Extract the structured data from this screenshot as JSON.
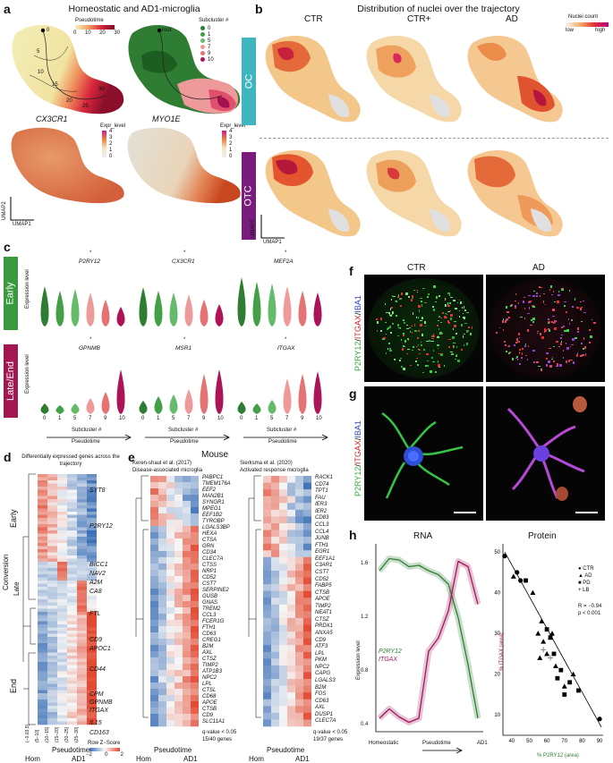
{
  "panel_a": {
    "letter": "a",
    "title": "Homeostatic and AD1-microglia",
    "pseudotime_legend": {
      "title": "Pseudotime",
      "ticks": [
        "0",
        "10",
        "20",
        "30"
      ]
    },
    "subcluster_legend": {
      "title": "Subcluster #",
      "items": [
        "0",
        "1",
        "5",
        "7",
        "9",
        "10"
      ],
      "colors": [
        "#2e7d32",
        "#43a047",
        "#66bb6a",
        "#ef9a9a",
        "#e57373",
        "#ad1457"
      ]
    },
    "trajectory_labels": [
      "0",
      "5",
      "10",
      "15",
      "20",
      "25",
      "30"
    ],
    "root_label": "root",
    "gene1": "CX3CR1",
    "gene2": "MYO1E",
    "expr_legend": {
      "title": "Expr_level",
      "ticks": [
        "4",
        "3",
        "2",
        "1",
        "0"
      ]
    },
    "umap1": "UMAP1",
    "umap2": "UMAP2"
  },
  "panel_b": {
    "letter": "b",
    "title": "Distribution of nuclei over the trajectory",
    "columns": [
      "CTR",
      "CTR+",
      "AD"
    ],
    "rows": [
      "OC",
      "OTC"
    ],
    "legend": {
      "title": "Nuclei count",
      "low": "low",
      "high": "high"
    },
    "umap1": "UMAP1",
    "umap2": "UMAP2",
    "colors": {
      "oc": "#3fb6bf",
      "otc": "#7a1c7e"
    }
  },
  "panel_c": {
    "letter": "c",
    "rows": [
      "Early",
      "Late/End"
    ],
    "row_colors": [
      "#3a9a3e",
      "#a11850"
    ],
    "ylabel": "Expression level",
    "genes_top": [
      "P2RY12",
      "CX3CR1",
      "MEF2A"
    ],
    "genes_bottom": [
      "GPNMB",
      "MSR1",
      "ITGAX"
    ],
    "star": "*",
    "subclusters": [
      "0",
      "1",
      "5",
      "7",
      "9",
      "10"
    ],
    "subcluster_label": "Subcluster #",
    "pseudotime_label": "Pseudotime"
  },
  "panel_d": {
    "letter": "d",
    "title": "Differentially expressed genes across the trajectory",
    "sections": [
      "Early",
      "Conversion",
      "Late",
      "End"
    ],
    "genes": [
      "SYT8",
      "P2RY12",
      "BICC1",
      "NAV2",
      "A2M",
      "CA8",
      "FTL",
      "CD9",
      "APOC1",
      "CD44",
      "CPM",
      "GPNMB",
      "ITGAX",
      "IL15",
      "CD163"
    ],
    "bins": [
      "(−0.03,5]",
      "(5−10]",
      "(10−15]",
      "(15−20]",
      "(20−25]",
      "(25−30]"
    ],
    "legend": {
      "title": "Row Z−Score",
      "ticks": [
        "−2",
        "0",
        "2"
      ]
    },
    "xlabel": "Pseudotime",
    "hom": "Hom",
    "ad1": "AD1"
  },
  "panel_e": {
    "letter": "e",
    "species": "Mouse",
    "left": {
      "study": "Keren-shaul et al. (2017)",
      "subtitle": "Disease-associated microglia",
      "genes": [
        "PABPC1",
        "TMEM176A",
        "EEF2",
        "MAN2B1",
        "SYNGR1",
        "MPEG1",
        "EEF1B2",
        "TYROBP",
        "LGALS3BP",
        "HEXA",
        "CTSA",
        "GRN",
        "CD34",
        "CLEC7A",
        "CTSS",
        "NRP1",
        "CD52",
        "CST7",
        "SERPINE2",
        "GUSB",
        "GNAS",
        "TREM2",
        "CCL3",
        "FCER1G",
        "FTH1",
        "CD63",
        "CREG1",
        "B2M",
        "AXL",
        "CTSZ",
        "TIMP2",
        "ATP1B3",
        "NPC2",
        "LPL",
        "CTSL",
        "CD68",
        "APOE",
        "CTSB",
        "CD9",
        "SLC11A1"
      ],
      "footnote1": "q-value < 0.05",
      "footnote2": "15/40 genes"
    },
    "right": {
      "study": "Sierksma et al. (2020)",
      "subtitle": "Activated response microglia",
      "genes": [
        "RACK1",
        "CD74",
        "TPT1",
        "FAU",
        "IER3",
        "IER2",
        "CD83",
        "CCL3",
        "CCL4",
        "JUNB",
        "FTH1",
        "EGR1",
        "EEF1A1",
        "C3AR1",
        "CST7",
        "CD52",
        "FABP5",
        "CTSB",
        "APOE",
        "TIMP2",
        "NEAT1",
        "CTSZ",
        "PRDX1",
        "ANXA5",
        "CD9",
        "ATF3",
        "LPL",
        "PKM",
        "NPC2",
        "CAPG",
        "LGALS3",
        "B2M",
        "FOS",
        "CD63",
        "AXL",
        "DUSP1",
        "CLEC7A"
      ],
      "footnote1": "q-value < 0.05",
      "footnote2": "19/37 genes"
    },
    "bins": [
      "(−0.03,5]",
      "(5−10]",
      "(10−15]",
      "(15−20]",
      "(20−25]",
      "(25−30]"
    ],
    "xlabel": "Pseudotime",
    "hom": "Hom",
    "ad1": "AD1"
  },
  "panel_f": {
    "letter": "f",
    "columns": [
      "CTR",
      "AD"
    ],
    "stain_label_parts": [
      "P2RY12",
      "/",
      "ITGAX",
      "/",
      "IBA1"
    ],
    "stain_colors": [
      "#2fa83a",
      "#222",
      "#d41f2a",
      "#222",
      "#2b3fbf"
    ]
  },
  "panel_g": {
    "letter": "g",
    "stain_label_parts": [
      "P2RY12",
      "/",
      "ITGAX",
      "/",
      "IBA1"
    ]
  },
  "panel_h": {
    "letter": "h",
    "rna": {
      "title": "RNA",
      "ylabel": "Expression level",
      "yticks": [
        "1.6",
        "1.2",
        "0.8",
        "0.4"
      ],
      "xlabel": "Pseudotime",
      "x_left": "Homeostatic",
      "x_right": "AD1",
      "series": [
        {
          "name": "P2RY12",
          "color": "#2e7d32"
        },
        {
          "name": "ITGAX",
          "color": "#a0185a"
        }
      ]
    },
    "protein": {
      "title": "Protein",
      "ylabel": "% ITGAX (area)",
      "xlabel": "% P2RY12 (area)",
      "yticks": [
        "50",
        "40",
        "30",
        "20",
        "10"
      ],
      "xticks": [
        "40",
        "50",
        "60",
        "70",
        "80",
        "90"
      ],
      "legend": [
        "CTR",
        "AD",
        "PD",
        "LB"
      ],
      "stats_r": "R = −0.94",
      "stats_p": "p < 0.001"
    }
  },
  "chart_data": [
    {
      "type": "scatter",
      "title": "Protein",
      "xlabel": "% P2RY12 (area)",
      "ylabel": "% ITGAX (area)",
      "xlim": [
        35,
        92
      ],
      "ylim": [
        5,
        52
      ],
      "series": [
        {
          "name": "CTR",
          "marker": "circle",
          "x": [
            36,
            43,
            45,
            90
          ],
          "y": [
            49,
            45,
            43,
            9
          ]
        },
        {
          "name": "AD",
          "marker": "triangle",
          "x": [
            41,
            52,
            55,
            58,
            60,
            62,
            63,
            65,
            70,
            75,
            57,
            56
          ],
          "y": [
            44,
            40,
            30,
            28,
            25,
            29,
            30,
            22,
            17,
            20,
            33,
            24
          ]
        },
        {
          "name": "PD",
          "marker": "square",
          "x": [
            48,
            60,
            62,
            64,
            66,
            68,
            70,
            73,
            78
          ],
          "y": [
            43,
            31,
            29,
            25,
            19,
            21,
            15,
            18,
            16
          ]
        },
        {
          "name": "LB",
          "marker": "plus",
          "x": [
            58,
            62
          ],
          "y": [
            26,
            24
          ]
        }
      ],
      "annotations": [
        "R = −0.94",
        "p < 0.001"
      ]
    },
    {
      "type": "line",
      "title": "RNA",
      "ylabel": "Expression level",
      "xlabel": "Pseudotime",
      "ylim": [
        0.35,
        1.75
      ],
      "series": [
        {
          "name": "P2RY12",
          "x": [
            0,
            0.1,
            0.2,
            0.3,
            0.4,
            0.5,
            0.6,
            0.7,
            0.8,
            0.9,
            1.0
          ],
          "y": [
            1.55,
            1.64,
            1.63,
            1.58,
            1.59,
            1.55,
            1.52,
            1.45,
            1.2,
            0.85,
            0.45
          ]
        },
        {
          "name": "ITGAX",
          "x": [
            0,
            0.1,
            0.2,
            0.3,
            0.4,
            0.5,
            0.6,
            0.7,
            0.8,
            0.9,
            1.0
          ],
          "y": [
            0.45,
            0.52,
            0.46,
            0.42,
            0.45,
            0.95,
            1.05,
            1.25,
            1.62,
            1.58,
            1.3
          ]
        }
      ]
    }
  ]
}
